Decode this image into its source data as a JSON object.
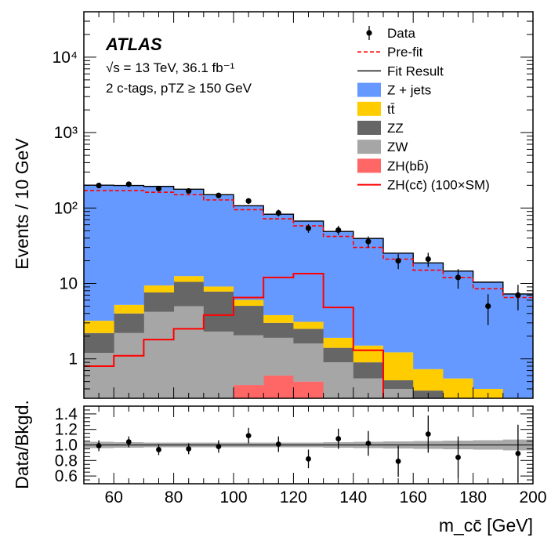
{
  "chart_data": {
    "type": "histogram",
    "experiment": "ATLAS",
    "energy_label": "√s = 13 TeV, 36.1 fb⁻¹",
    "selection_label": "2 c-tags, pTZ ≥ 150 GeV",
    "x": {
      "label": "m_cc̄ [GeV]",
      "range": [
        50,
        200
      ],
      "bin_edges": [
        50,
        60,
        70,
        80,
        90,
        100,
        110,
        120,
        130,
        140,
        150,
        160,
        170,
        180,
        190,
        200
      ],
      "ticks": [
        60,
        80,
        100,
        120,
        140,
        160,
        180,
        200
      ]
    },
    "main_panel": {
      "ylabel": "Events / 10 GeV",
      "yscale": "log",
      "ylim": [
        0.3,
        40000
      ],
      "y_tick_labels": [
        "1",
        "10",
        "10²",
        "10³",
        "10⁴"
      ],
      "y_tick_values": [
        1,
        10,
        100,
        1000,
        10000
      ],
      "stack": [
        {
          "name": "ZH(bb̄)",
          "color": "#ff6666",
          "values": [
            0,
            0,
            0,
            0,
            0.3,
            0.45,
            0.6,
            0.5,
            0,
            0,
            0,
            0,
            0,
            0,
            0
          ]
        },
        {
          "name": "ZW",
          "color": "#a6a6a6",
          "values": [
            1.2,
            2.2,
            4.2,
            5.0,
            2.0,
            1.6,
            1.3,
            1.1,
            0.9,
            0.55,
            0.4,
            0.28,
            0.2,
            0.15,
            0.1
          ]
        },
        {
          "name": "ZZ",
          "color": "#666666",
          "values": [
            1.0,
            1.8,
            3.4,
            5.5,
            5.5,
            3.0,
            1.1,
            0.9,
            0.5,
            0.35,
            0.12,
            0.1,
            0.07,
            0.05,
            0.05
          ]
        },
        {
          "name": "tt̄",
          "color": "#ffcc00",
          "values": [
            1.0,
            1.2,
            1.8,
            2.0,
            1.3,
            1.0,
            0.8,
            0.6,
            0.5,
            0.6,
            0.7,
            0.35,
            0.28,
            0.2,
            0.1
          ]
        },
        {
          "name": "Z + jets",
          "color": "#6699ff",
          "values": [
            197,
            193,
            183,
            165,
            141,
            101,
            79,
            64,
            47,
            38,
            24,
            18,
            14,
            10,
            7
          ]
        }
      ],
      "fit_result": {
        "name": "Fit Result",
        "color": "#000000",
        "values": [
          201,
          199.2,
          193.4,
          177.5,
          150.1,
          107.1,
          82.8,
          67.1,
          48.9,
          39.5,
          25.2,
          18.7,
          14.6,
          10.4,
          7.25
        ]
      },
      "prefit": {
        "name": "Pre-fit",
        "color": "#ff0000",
        "values": [
          170,
          170,
          162,
          150,
          128,
          95,
          72,
          58,
          42,
          30,
          21,
          15,
          12,
          8.5,
          6.5
        ]
      },
      "signal": {
        "name": "ZH(cc̄) (100×SM)",
        "color": "#ff0000",
        "values": [
          0.8,
          1.1,
          1.8,
          2.5,
          3.8,
          6.5,
          12,
          13.5,
          4.8,
          1.3,
          0,
          0,
          0,
          0,
          0
        ]
      },
      "data": {
        "name": "Data",
        "x": [
          55,
          65,
          75,
          85,
          95,
          105,
          115,
          125,
          135,
          145,
          155,
          165,
          175,
          185,
          195
        ],
        "y": [
          199,
          207,
          181,
          168,
          147,
          124,
          86,
          54,
          51,
          36,
          20,
          21,
          12,
          5,
          7
        ],
        "err_low": [
          14,
          14,
          13,
          13,
          12,
          11,
          9,
          7,
          7,
          6,
          4.5,
          4.5,
          3.5,
          2.2,
          2.6
        ],
        "err_high": [
          14,
          14,
          13,
          13,
          12,
          11,
          9,
          7,
          7,
          6,
          4.5,
          4.5,
          3.5,
          2.2,
          2.6
        ]
      }
    },
    "ratio_panel": {
      "ylabel": "Data/Bkgd.",
      "ylim": [
        0.5,
        1.5
      ],
      "y_tick_labels": [
        "0.6",
        "0.8",
        "1.0",
        "1.2",
        "1.4"
      ],
      "y_tick_values": [
        0.6,
        0.8,
        1.0,
        1.2,
        1.4
      ],
      "band_halfwidth": [
        0.04,
        0.035,
        0.03,
        0.03,
        0.03,
        0.03,
        0.03,
        0.03,
        0.035,
        0.04,
        0.045,
        0.05,
        0.055,
        0.06,
        0.07
      ],
      "values": [
        0.99,
        1.04,
        0.94,
        0.95,
        0.98,
        1.12,
        1.01,
        0.82,
        1.08,
        1.02,
        0.79,
        1.14,
        0.84,
        null,
        0.89
      ],
      "err": [
        0.07,
        0.07,
        0.07,
        0.07,
        0.08,
        0.1,
        0.1,
        0.12,
        0.13,
        0.16,
        0.2,
        0.24,
        0.27,
        null,
        0.37
      ]
    },
    "legend": [
      {
        "label": "Data",
        "kind": "marker"
      },
      {
        "label": "Pre-fit",
        "kind": "dashed",
        "color": "#ff0000"
      },
      {
        "label": "Fit Result",
        "kind": "line",
        "color": "#000000"
      },
      {
        "label": "Z + jets",
        "kind": "box",
        "color": "#6699ff"
      },
      {
        "label": "tt̄",
        "kind": "box",
        "color": "#ffcc00"
      },
      {
        "label": "ZZ",
        "kind": "box",
        "color": "#666666"
      },
      {
        "label": "ZW",
        "kind": "box",
        "color": "#a6a6a6"
      },
      {
        "label": "ZH(bb̄)",
        "kind": "box",
        "color": "#ff6666"
      },
      {
        "label": "ZH(cc̄) (100×SM)",
        "kind": "line",
        "color": "#ff0000"
      }
    ]
  }
}
